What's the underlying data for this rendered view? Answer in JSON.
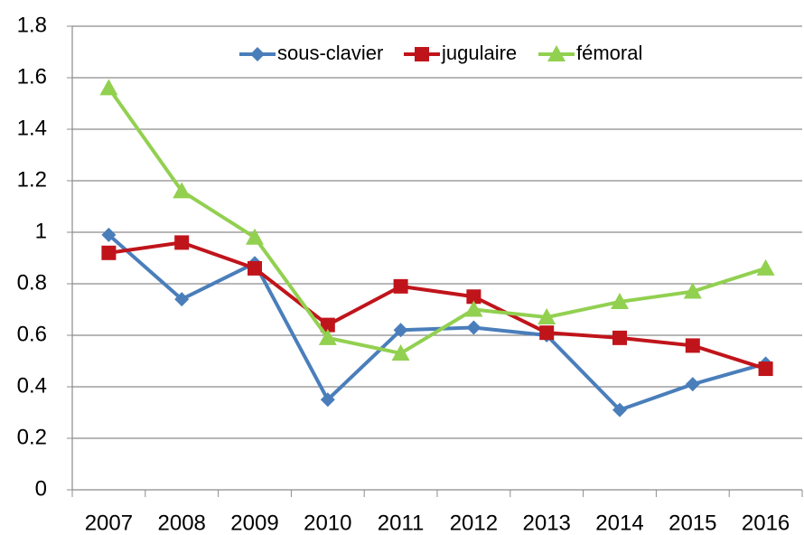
{
  "chart_data": {
    "type": "line",
    "categories": [
      "2007",
      "2008",
      "2009",
      "2010",
      "2011",
      "2012",
      "2013",
      "2014",
      "2015",
      "2016"
    ],
    "series": [
      {
        "name": "sous-clavier",
        "color": "#4a7ebb",
        "marker": "diamond",
        "values": [
          0.99,
          0.74,
          0.88,
          0.35,
          0.62,
          0.63,
          0.6,
          0.31,
          0.41,
          0.49
        ]
      },
      {
        "name": "jugulaire",
        "color": "#c0141b",
        "marker": "square",
        "values": [
          0.92,
          0.96,
          0.86,
          0.64,
          0.79,
          0.75,
          0.61,
          0.59,
          0.56,
          0.47
        ]
      },
      {
        "name": "fémoral",
        "color": "#92d050",
        "marker": "triangle",
        "values": [
          1.56,
          1.16,
          0.98,
          0.59,
          0.53,
          0.7,
          0.67,
          0.73,
          0.77,
          0.86
        ]
      }
    ],
    "ylim": [
      0,
      1.8
    ],
    "yticks": [
      0,
      0.2,
      0.4,
      0.6,
      0.8,
      1,
      1.2,
      1.4,
      1.6,
      1.8
    ],
    "grid": true,
    "legend": "top"
  }
}
